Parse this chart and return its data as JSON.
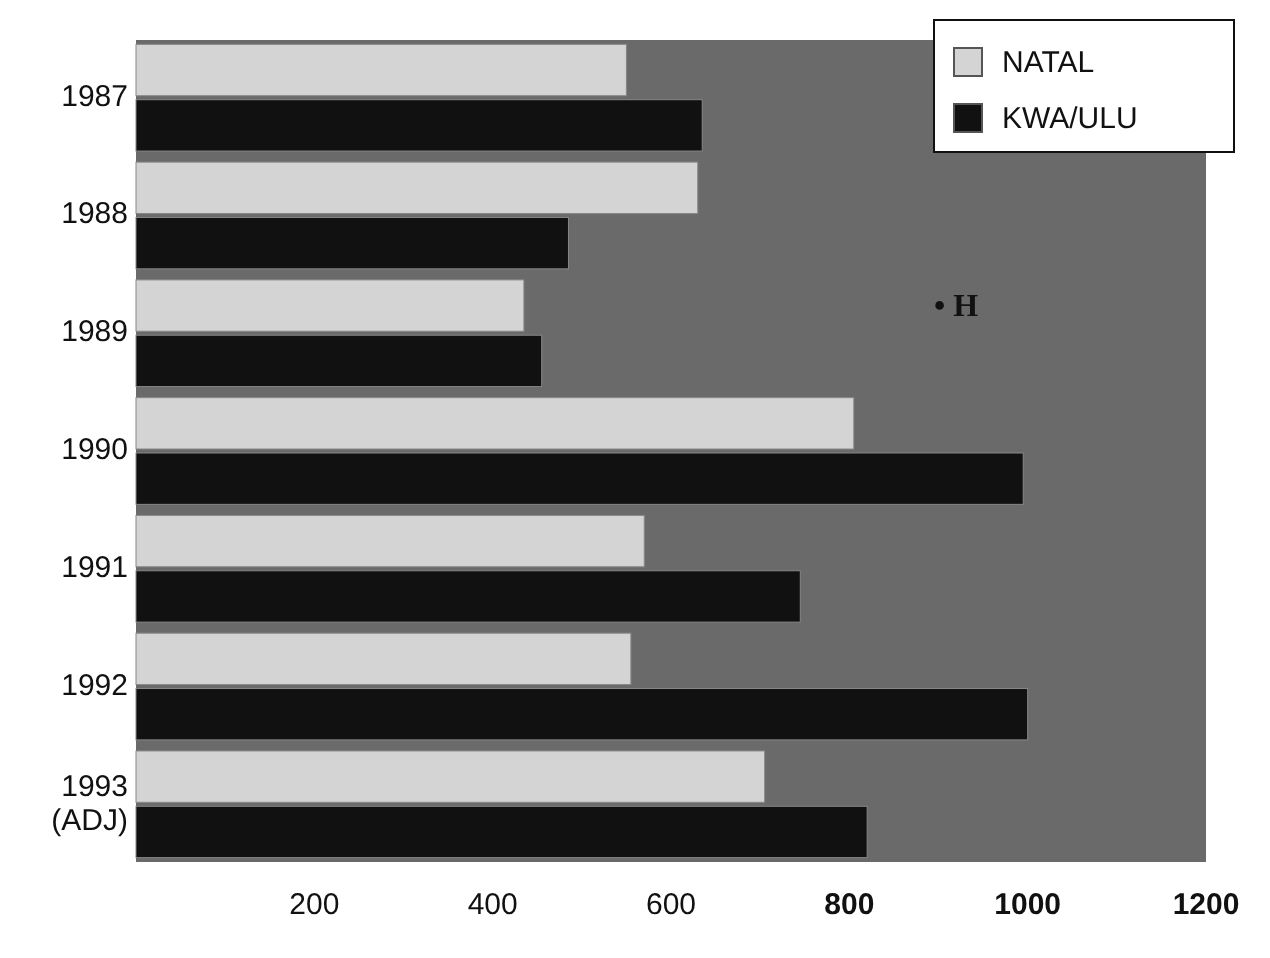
{
  "chart_data": {
    "type": "bar",
    "orientation": "horizontal",
    "categories": [
      "1987",
      "1988",
      "1989",
      "1990",
      "1991",
      "1992",
      "1993 (ADJ)"
    ],
    "series": [
      {
        "name": "NATAL",
        "color": "#d4d4d4",
        "values": [
          550,
          630,
          435,
          805,
          570,
          555,
          705
        ]
      },
      {
        "name": "KWA/ULU",
        "color": "#111111",
        "values": [
          635,
          485,
          455,
          995,
          745,
          1000,
          820
        ]
      }
    ],
    "xlim": [
      0,
      1200
    ],
    "xticks": [
      200,
      400,
      600,
      800,
      1000,
      1200
    ],
    "legend": "top right",
    "grid": false,
    "annotations": [
      "• H"
    ]
  }
}
